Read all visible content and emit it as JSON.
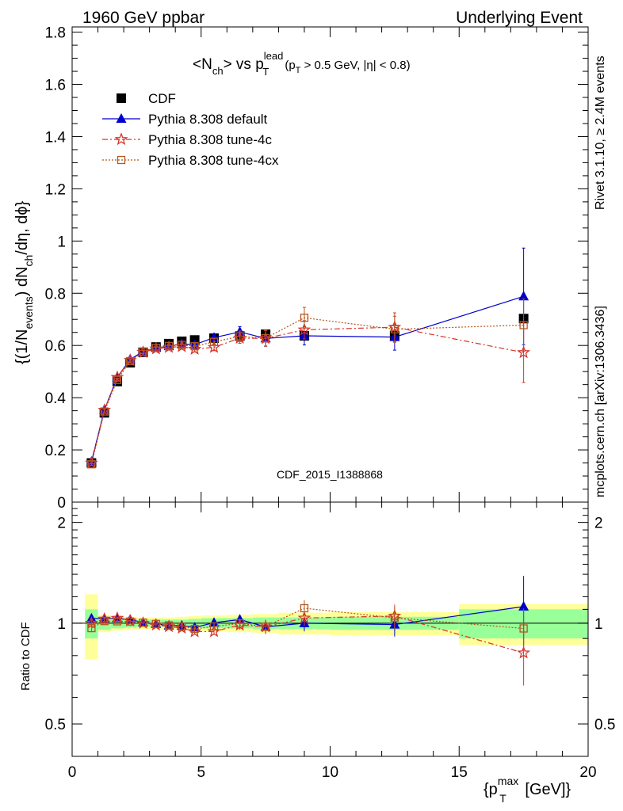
{
  "header": {
    "left": "1960 GeV ppbar",
    "right": "Underlying Event"
  },
  "side": {
    "rivet": "Rivet 3.1.10, ≥ 2.4M events",
    "mcplots": "mcplots.cern.ch [arXiv:1306.3436]"
  },
  "watermark": "CDF_2015_I1388868",
  "title": {
    "main": "<N",
    "sub_ch": "ch",
    "mid": "> vs p",
    "sup_lead": "lead",
    "sub_T": "T",
    "cut": "(p",
    "cut_sub": "T",
    "cut_rest": " > 0.5 GeV, |η| < 0.8)"
  },
  "ylabel": {
    "p1": "{(1/N",
    "s1": "events",
    "p2": ") dN",
    "s2": "ch",
    "p3": "/dη, dϕ}"
  },
  "ratio_label": "Ratio to CDF",
  "xlabel": {
    "p1": "{p",
    "sup": "max",
    "sub": "T",
    "p2": " [GeV]}"
  },
  "chart_data": {
    "type": "scatter",
    "x_ticks": [
      "0",
      "5",
      "10",
      "15",
      "20"
    ],
    "y_ticks": [
      "0",
      "0.2",
      "0.4",
      "0.6",
      "0.8",
      "1",
      "1.2",
      "1.4",
      "1.6",
      "1.8"
    ],
    "ratio_ticks": [
      "0.5",
      "1",
      "2"
    ],
    "xlim": [
      0,
      20
    ],
    "ylim": [
      0,
      1.82
    ],
    "ratio_ylim": [
      0.4,
      2.3
    ],
    "ratio_log": true,
    "legend_position": "top-left",
    "band_edges": [
      0.5,
      1.0,
      1.5,
      2.0,
      2.5,
      3.0,
      3.5,
      4.0,
      4.5,
      5.0,
      6.0,
      7.0,
      8.0,
      10.0,
      15.0,
      20.0
    ],
    "band_inner": [
      0.1,
      0.045,
      0.035,
      0.03,
      0.025,
      0.025,
      0.025,
      0.025,
      0.03,
      0.035,
      0.035,
      0.04,
      0.04,
      0.045,
      0.1
    ],
    "band_outer": [
      0.22,
      0.06,
      0.05,
      0.045,
      0.04,
      0.04,
      0.04,
      0.045,
      0.05,
      0.055,
      0.06,
      0.065,
      0.075,
      0.08,
      0.14
    ],
    "series": [
      {
        "name": "CDF",
        "style": "data",
        "color": "#000000",
        "x": [
          0.75,
          1.25,
          1.75,
          2.25,
          2.75,
          3.25,
          3.75,
          4.25,
          4.75,
          5.5,
          6.5,
          7.5,
          9.0,
          12.5,
          17.5
        ],
        "y": [
          0.15,
          0.342,
          0.462,
          0.534,
          0.574,
          0.594,
          0.607,
          0.616,
          0.621,
          0.628,
          0.636,
          0.643,
          0.637,
          0.638,
          0.703
        ],
        "err": [
          0,
          0,
          0,
          0,
          0,
          0,
          0,
          0,
          0,
          0,
          0,
          0,
          0,
          0,
          0
        ]
      },
      {
        "name": "Pythia 8.308 default",
        "style": "line-triangle",
        "color": "#0000cc",
        "x": [
          0.75,
          1.25,
          1.75,
          2.25,
          2.75,
          3.25,
          3.75,
          4.25,
          4.75,
          5.5,
          6.5,
          7.5,
          9.0,
          12.5,
          17.5
        ],
        "y": [
          0.155,
          0.353,
          0.478,
          0.547,
          0.577,
          0.591,
          0.597,
          0.606,
          0.603,
          0.63,
          0.652,
          0.627,
          0.637,
          0.632,
          0.788
        ],
        "err": [
          0.004,
          0.006,
          0.006,
          0.006,
          0.006,
          0.006,
          0.007,
          0.008,
          0.01,
          0.013,
          0.02,
          0.03,
          0.035,
          0.05,
          0.185
        ]
      },
      {
        "name": "Pythia 8.308 tune-4c",
        "style": "dashdot-star",
        "color": "#d9342b",
        "x": [
          0.75,
          1.25,
          1.75,
          2.25,
          2.75,
          3.25,
          3.75,
          4.25,
          4.75,
          5.5,
          6.5,
          7.5,
          9.0,
          12.5,
          17.5
        ],
        "y": [
          0.15,
          0.352,
          0.478,
          0.543,
          0.574,
          0.587,
          0.593,
          0.596,
          0.586,
          0.593,
          0.628,
          0.627,
          0.66,
          0.67,
          0.573
        ],
        "err": [
          0.004,
          0.006,
          0.006,
          0.006,
          0.006,
          0.006,
          0.007,
          0.008,
          0.01,
          0.013,
          0.02,
          0.03,
          0.035,
          0.055,
          0.115
        ]
      },
      {
        "name": "Pythia 8.308 tune-4cx",
        "style": "dotted-square",
        "color": "#b5561c",
        "x": [
          0.75,
          1.25,
          1.75,
          2.25,
          2.75,
          3.25,
          3.75,
          4.25,
          4.75,
          5.5,
          6.5,
          7.5,
          9.0,
          12.5,
          17.5
        ],
        "y": [
          0.145,
          0.347,
          0.468,
          0.54,
          0.576,
          0.591,
          0.598,
          0.602,
          0.597,
          0.614,
          0.635,
          0.628,
          0.706,
          0.662,
          0.678
        ],
        "err": [
          0.004,
          0.006,
          0.006,
          0.006,
          0.006,
          0.006,
          0.007,
          0.008,
          0.01,
          0.013,
          0.02,
          0.03,
          0.04,
          0.05,
          0.1
        ]
      }
    ]
  }
}
